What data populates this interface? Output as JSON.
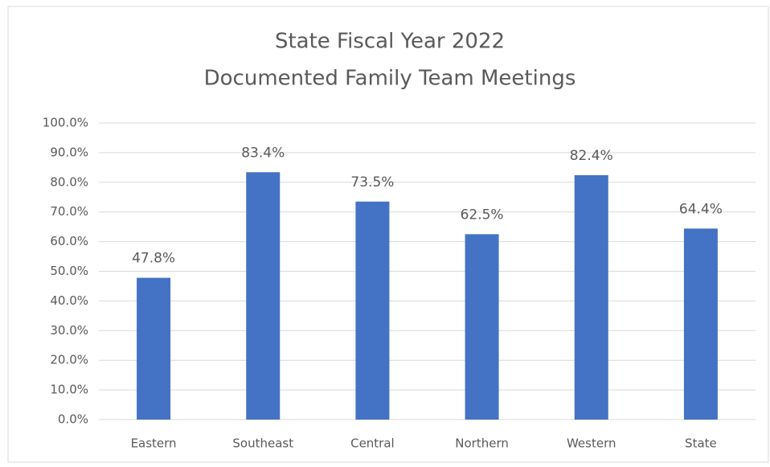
{
  "chart_data": {
    "type": "bar",
    "title": [
      "State Fiscal Year 2022",
      "Documented Family Team Meetings"
    ],
    "categories": [
      "Eastern",
      "Southeast",
      "Central",
      "Northern",
      "Western",
      "State"
    ],
    "values": [
      47.8,
      83.4,
      73.5,
      62.5,
      82.4,
      64.4
    ],
    "value_labels": [
      "47.8%",
      "83.4%",
      "73.5%",
      "62.5%",
      "82.4%",
      "64.4%"
    ],
    "color": "#4472c4",
    "ylim": [
      0,
      100
    ],
    "yticks": [
      {
        "value": 0,
        "label": "0.0%"
      },
      {
        "value": 10,
        "label": "10.0%"
      },
      {
        "value": 20,
        "label": "20.0%"
      },
      {
        "value": 30,
        "label": "30.0%"
      },
      {
        "value": 40,
        "label": "40.0%"
      },
      {
        "value": 50,
        "label": "50.0%"
      },
      {
        "value": 60,
        "label": "60.0%"
      },
      {
        "value": 70,
        "label": "70.0%"
      },
      {
        "value": 80,
        "label": "80.0%"
      },
      {
        "value": 90,
        "label": "90.0%"
      },
      {
        "value": 100,
        "label": "100.0%"
      }
    ],
    "grid": true
  }
}
